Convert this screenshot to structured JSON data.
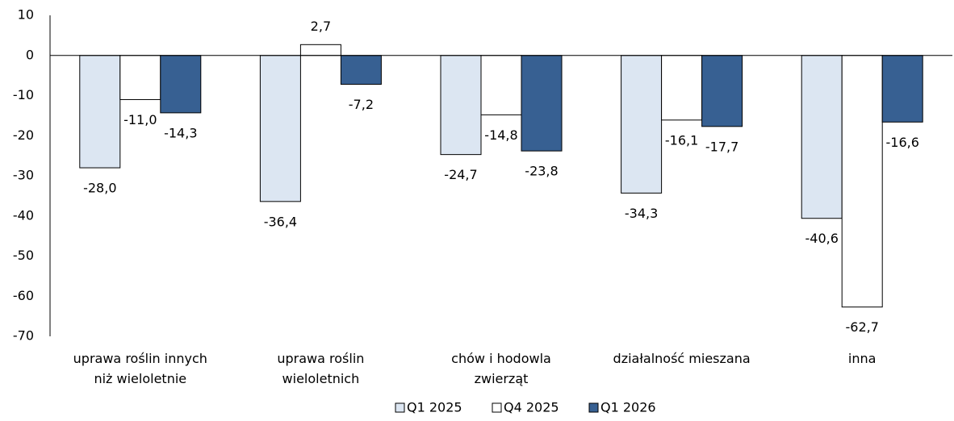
{
  "chart_data": {
    "type": "bar",
    "categories": [
      "uprawa roślin innych\nniż wieloletnie",
      "uprawa roślin\nwieloletnich",
      "chów i hodowla\nzwierząt",
      "działalność mieszana",
      "inna"
    ],
    "series": [
      {
        "name": "Q1 2025",
        "color": "#dce6f2",
        "values": [
          -28.0,
          -36.4,
          -24.7,
          -34.3,
          -40.6
        ],
        "value_labels": [
          "-28,0",
          "-36,4",
          "-24,7",
          "-34,3",
          "-40,6"
        ]
      },
      {
        "name": "Q4 2025",
        "color": "#ffffff",
        "values": [
          -11.0,
          2.7,
          -14.8,
          -16.1,
          -62.7
        ],
        "value_labels": [
          "-11,0",
          "2,7",
          "-14,8",
          "-16,1",
          "-62,7"
        ]
      },
      {
        "name": "Q1 2026",
        "color": "#376092",
        "values": [
          -14.3,
          -7.2,
          -23.8,
          -17.7,
          -16.6
        ],
        "value_labels": [
          "-14,3",
          "-7,2",
          "-23,8",
          "-17,7",
          "-16,6"
        ]
      }
    ],
    "ylim": [
      -70,
      10
    ],
    "yticks": [
      10,
      0,
      -10,
      -20,
      -30,
      -40,
      -50,
      -60,
      -70
    ],
    "legend": "bottom"
  }
}
